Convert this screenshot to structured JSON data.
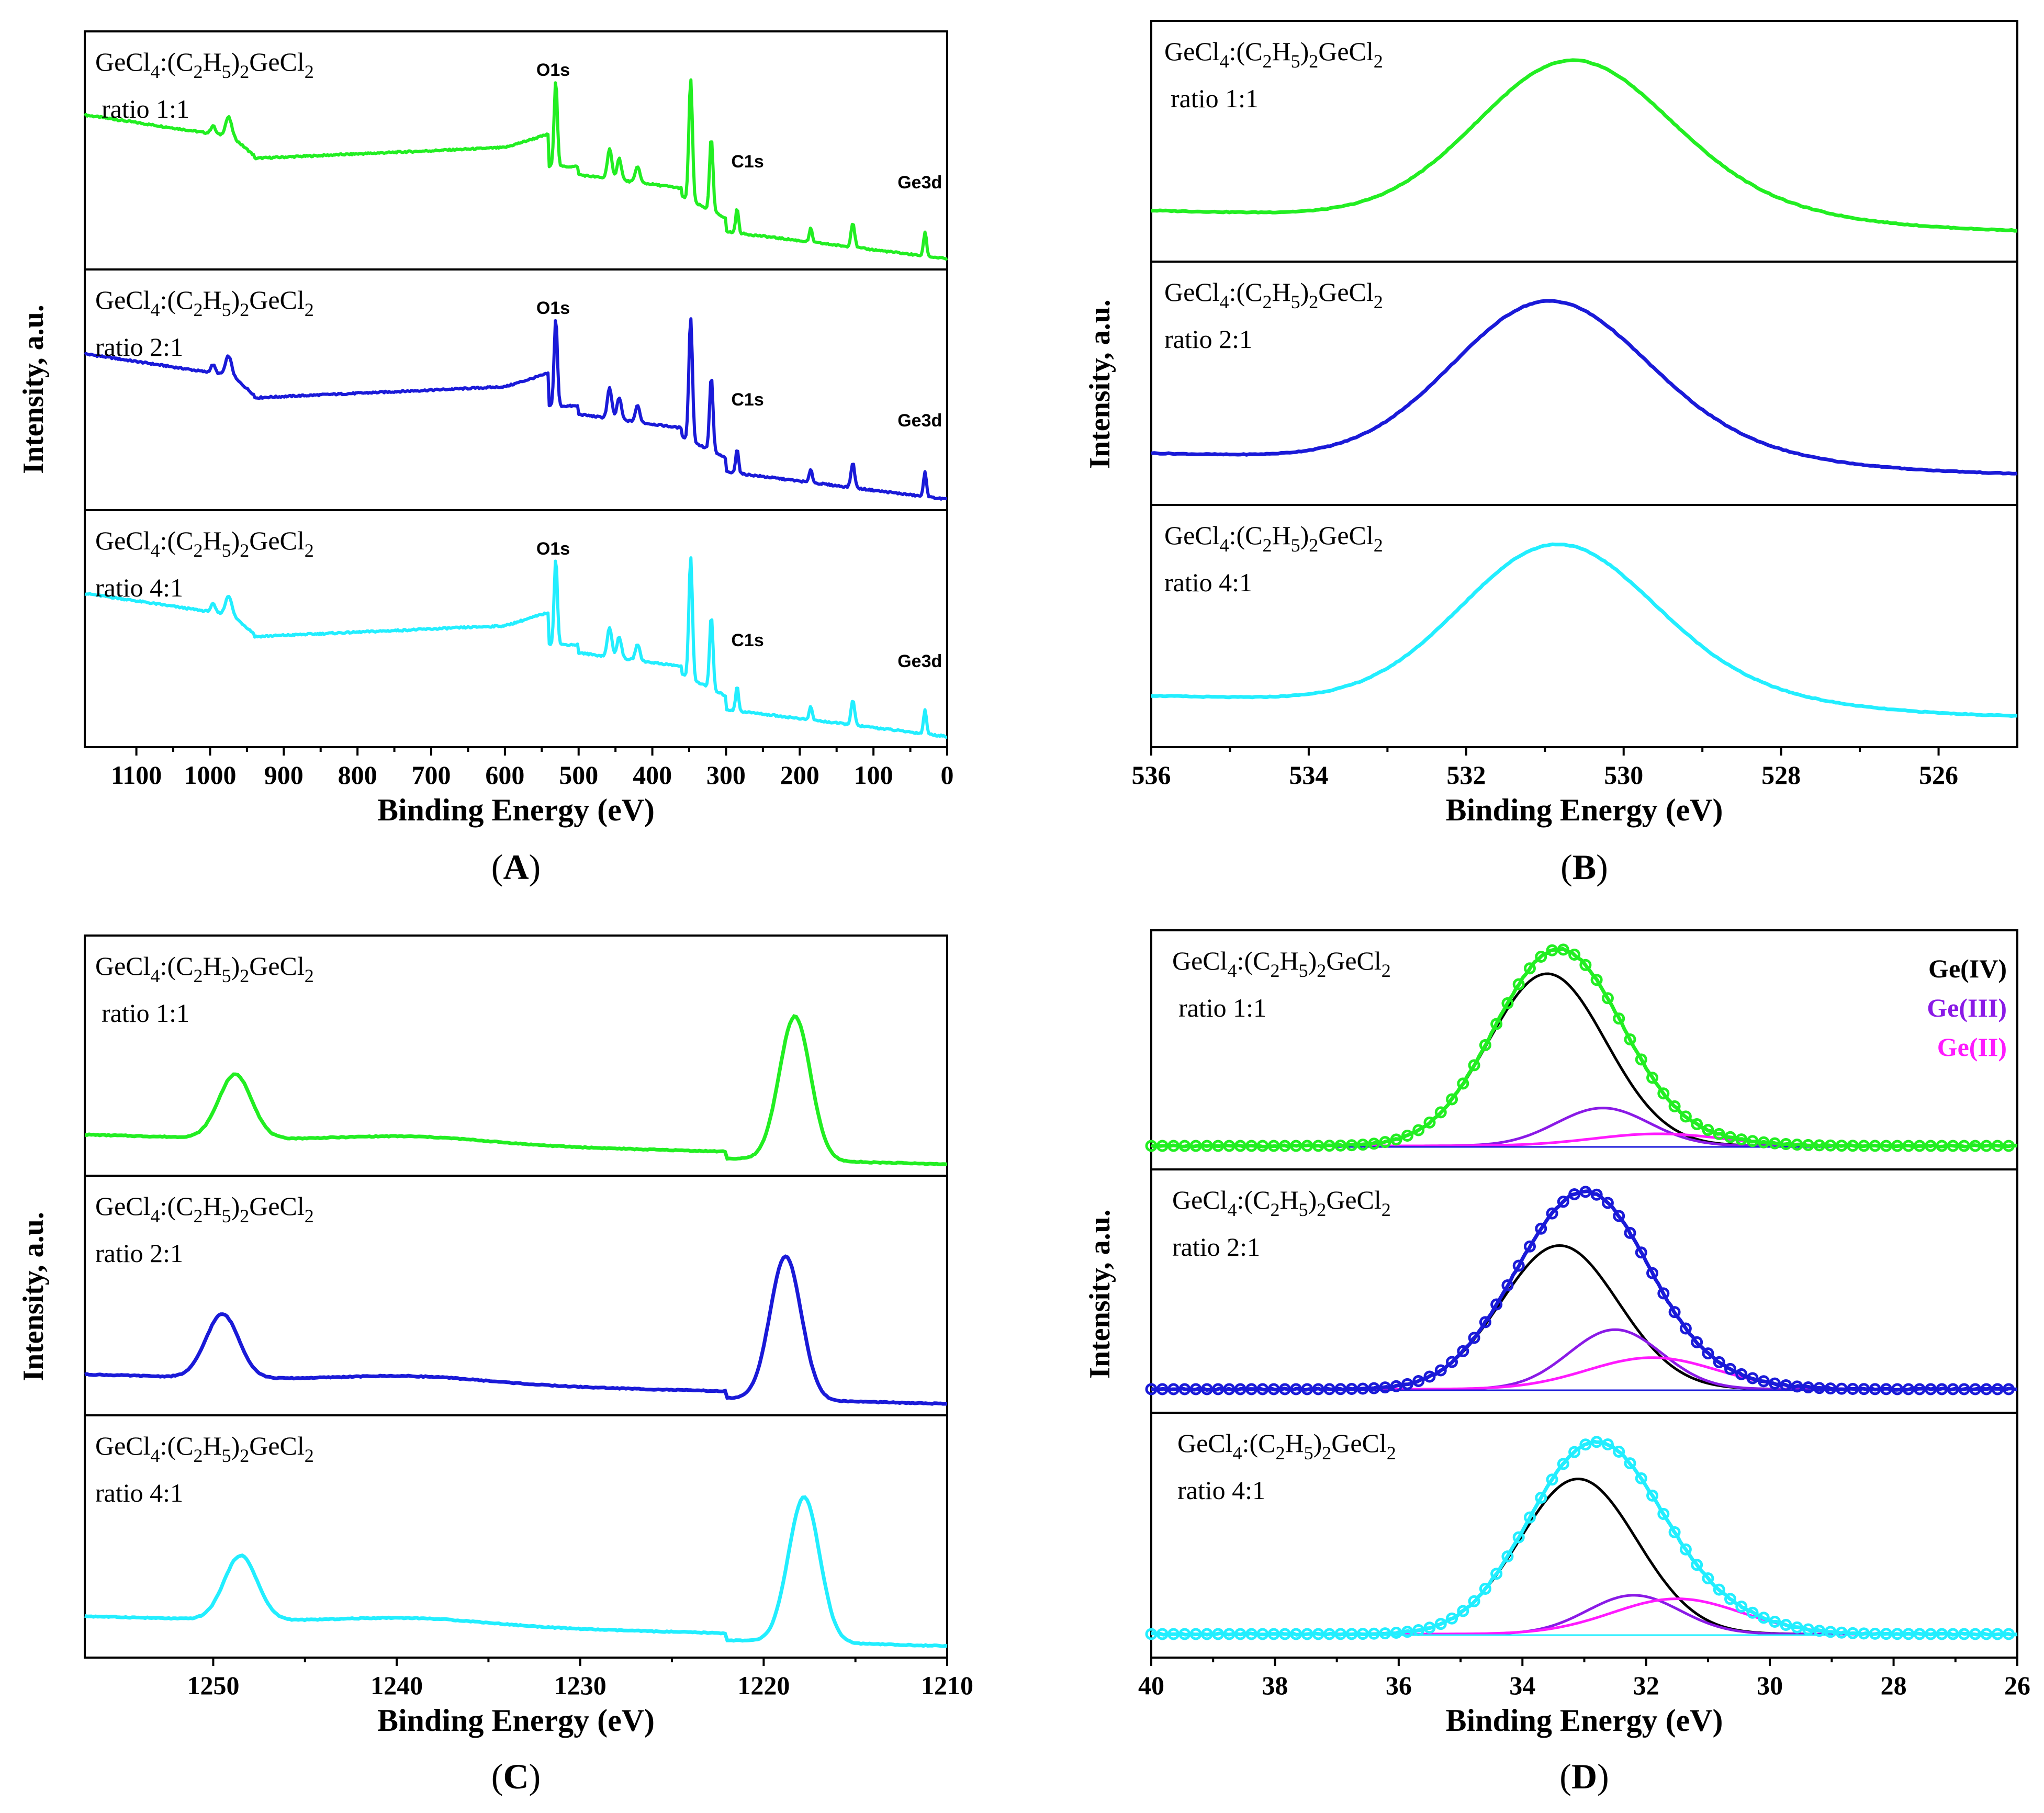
{
  "colors": {
    "ratio_1_1": "#22ee22",
    "ratio_2_1": "#1a1ad8",
    "ratio_4_1": "#22eeff",
    "ge_iv": "#000000",
    "ge_iii": "#8a1ae6",
    "ge_ii": "#ff1aff",
    "baseline": "#1a1ad8"
  },
  "chart_data": [
    {
      "panel": "A",
      "type": "line",
      "panel_letter": "A",
      "xlabel": "Binding Energy (eV)",
      "ylabel": "Intensity, a.u.",
      "xlim": [
        1170,
        0
      ],
      "xticks": [
        1100,
        1000,
        900,
        800,
        700,
        600,
        500,
        400,
        300,
        200,
        100,
        0
      ],
      "sample_prefix": "GeCl",
      "sample_sub1": "4",
      "sample_mid": ":(C",
      "sample_sub2": "2",
      "sample_h": "H",
      "sample_sub3": "5",
      "sample_close": ")",
      "sample_sub4": "2",
      "sample_suffix": "GeCl",
      "sample_sub5": "2",
      "peak_labels": [
        "O1s",
        "C1s",
        "Ge3d"
      ],
      "peak_positions": [
        531,
        285,
        30
      ],
      "series": [
        {
          "name": "ratio 1:1",
          "color_key": "ratio_1_1"
        },
        {
          "name": "ratio 2:1",
          "color_key": "ratio_2_1"
        },
        {
          "name": "ratio 4:1",
          "color_key": "ratio_4_1"
        }
      ]
    },
    {
      "panel": "B",
      "type": "line",
      "panel_letter": "B",
      "xlabel": "Binding Energy (eV)",
      "ylabel": "Intensity, a.u.",
      "xlim": [
        536,
        525
      ],
      "xticks": [
        536,
        534,
        532,
        530,
        528,
        526
      ],
      "series": [
        {
          "name": "ratio 1:1",
          "color_key": "ratio_1_1",
          "peak_center": 530.7
        },
        {
          "name": "ratio 2:1",
          "color_key": "ratio_2_1",
          "peak_center": 531.0
        },
        {
          "name": "ratio 4:1",
          "color_key": "ratio_4_1",
          "peak_center": 530.9
        }
      ]
    },
    {
      "panel": "C",
      "type": "line",
      "panel_letter": "C",
      "xlabel": "Binding Energy (eV)",
      "ylabel": "Intensity, a.u.",
      "xlim": [
        1257,
        1210
      ],
      "xticks": [
        1250,
        1240,
        1230,
        1220,
        1210
      ],
      "series": [
        {
          "name": "ratio 1:1",
          "color_key": "ratio_1_1",
          "peaks": [
            1248.8,
            1218.3
          ]
        },
        {
          "name": "ratio 2:1",
          "color_key": "ratio_2_1",
          "peaks": [
            1249.5,
            1218.8
          ]
        },
        {
          "name": "ratio 4:1",
          "color_key": "ratio_4_1",
          "peaks": [
            1248.5,
            1217.8
          ]
        }
      ]
    },
    {
      "panel": "D",
      "type": "line",
      "panel_letter": "D",
      "xlabel": "Binding Energy (eV)",
      "ylabel": "Intensity, a.u.",
      "xlim": [
        40,
        26
      ],
      "xticks": [
        40,
        38,
        36,
        34,
        32,
        30,
        28,
        26
      ],
      "legend": [
        "Ge(IV)",
        "Ge(III)",
        "Ge(II)"
      ],
      "legend_position": "top-right",
      "series": [
        {
          "name": "ratio 1:1",
          "color_key": "ratio_1_1",
          "components": {
            "ge_iv": [
              33.6,
              1.0
            ],
            "ge_iii": [
              32.7,
              0.22
            ],
            "ge_ii": [
              31.8,
              0.07
            ]
          }
        },
        {
          "name": "ratio 2:1",
          "color_key": "ratio_2_1",
          "components": {
            "ge_iv": [
              33.4,
              0.82
            ],
            "ge_iii": [
              32.5,
              0.34
            ],
            "ge_ii": [
              31.9,
              0.18
            ]
          }
        },
        {
          "name": "ratio 4:1",
          "color_key": "ratio_4_1",
          "components": {
            "ge_iv": [
              33.1,
              0.88
            ],
            "ge_iii": [
              32.2,
              0.22
            ],
            "ge_ii": [
              31.5,
              0.2
            ]
          }
        }
      ]
    }
  ]
}
